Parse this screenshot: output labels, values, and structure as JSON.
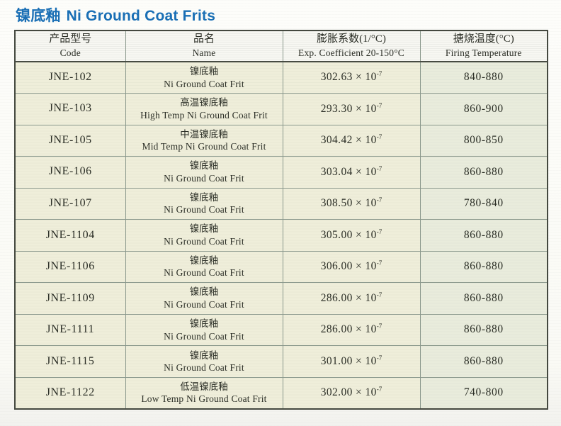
{
  "page": {
    "title_zh": "镍底釉",
    "title_en": "Ni Ground Coat Frits"
  },
  "colors": {
    "title_blue": "#1a6fb5",
    "cell_cream": "#efeeda",
    "cell_green_gray": "#e9ecdc",
    "grid_line": "#8a988c",
    "outer_border": "#44483f"
  },
  "table": {
    "headers": [
      {
        "zh": "产品型号",
        "en": "Code"
      },
      {
        "zh": "品名",
        "en": "Name"
      },
      {
        "zh": "膨胀系数(1/°C)",
        "en": "Exp. Coefficient 20-150°C"
      },
      {
        "zh": "搪烧温度(°C)",
        "en": "Firing Temperature"
      }
    ],
    "rows": [
      {
        "code": "JNE-102",
        "name_zh": "镍底釉",
        "name_en": "Ni Ground Coat Frit",
        "coefficient": "302.63 × 10",
        "exponent": "-7",
        "firing_temp": "840-880"
      },
      {
        "code": "JNE-103",
        "name_zh": "高温镍底釉",
        "name_en": "High Temp Ni Ground Coat Frit",
        "coefficient": "293.30 × 10",
        "exponent": "-7",
        "firing_temp": "860-900"
      },
      {
        "code": "JNE-105",
        "name_zh": "中温镍底釉",
        "name_en": "Mid Temp Ni Ground Coat Frit",
        "coefficient": "304.42 × 10",
        "exponent": "-7",
        "firing_temp": "800-850"
      },
      {
        "code": "JNE-106",
        "name_zh": "镍底釉",
        "name_en": "Ni Ground Coat Frit",
        "coefficient": "303.04 × 10",
        "exponent": "-7",
        "firing_temp": "860-880"
      },
      {
        "code": "JNE-107",
        "name_zh": "镍底釉",
        "name_en": "Ni Ground Coat Frit",
        "coefficient": "308.50 × 10",
        "exponent": "-7",
        "firing_temp": "780-840"
      },
      {
        "code": "JNE-1104",
        "name_zh": "镍底釉",
        "name_en": "Ni Ground Coat Frit",
        "coefficient": "305.00 × 10",
        "exponent": "-7",
        "firing_temp": "860-880"
      },
      {
        "code": "JNE-1106",
        "name_zh": "镍底釉",
        "name_en": "Ni Ground Coat Frit",
        "coefficient": "306.00 × 10",
        "exponent": "-7",
        "firing_temp": "860-880"
      },
      {
        "code": "JNE-1109",
        "name_zh": "镍底釉",
        "name_en": "Ni Ground Coat Frit",
        "coefficient": "286.00 × 10",
        "exponent": "-7",
        "firing_temp": "860-880"
      },
      {
        "code": "JNE-1111",
        "name_zh": "镍底釉",
        "name_en": "Ni Ground Coat Frit",
        "coefficient": "286.00 × 10",
        "exponent": "-7",
        "firing_temp": "860-880"
      },
      {
        "code": "JNE-1115",
        "name_zh": "镍底釉",
        "name_en": "Ni Ground Coat Frit",
        "coefficient": "301.00 × 10",
        "exponent": "-7",
        "firing_temp": "860-880"
      },
      {
        "code": "JNE-1122",
        "name_zh": "低温镍底釉",
        "name_en": "Low Temp Ni Ground Coat Frit",
        "coefficient": "302.00 × 10",
        "exponent": "-7",
        "firing_temp": "740-800"
      }
    ]
  }
}
